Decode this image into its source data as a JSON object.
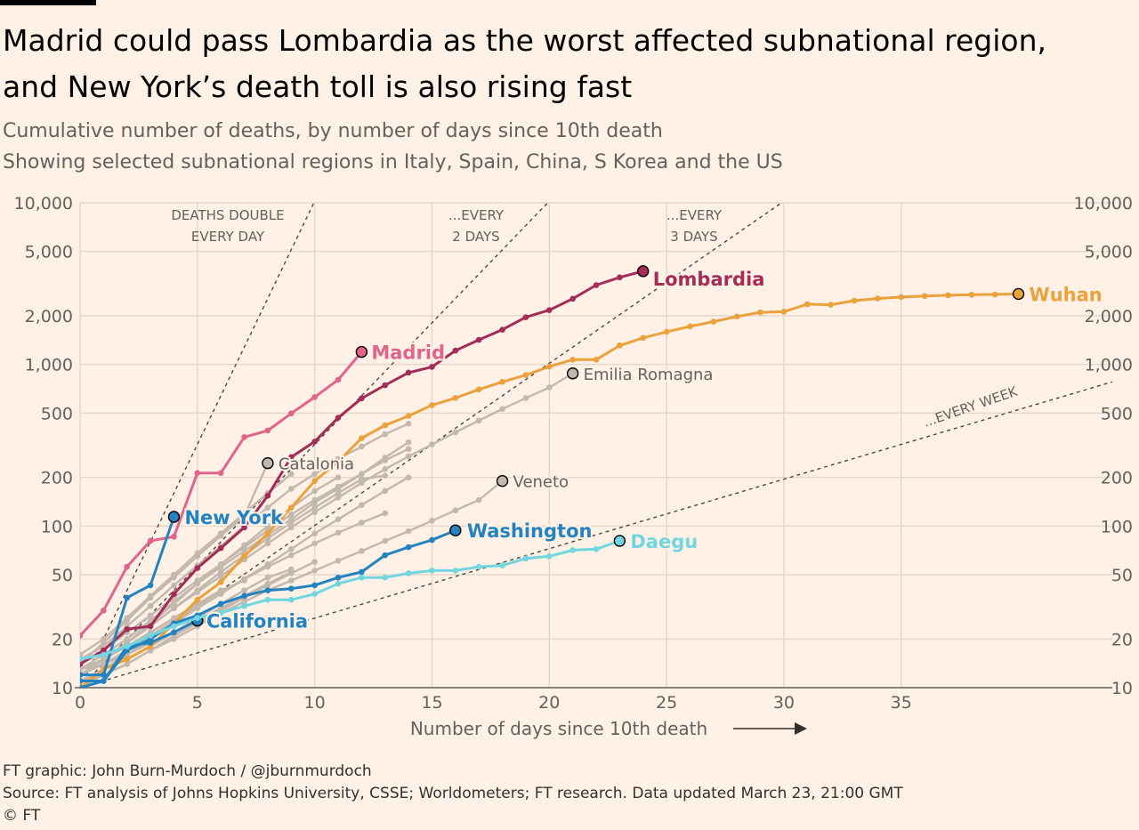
{
  "title_line1": "Madrid could pass Lombardia as the worst affected subnational region,",
  "title_line2": "and New York’s death toll is also rising fast",
  "subtitle_line1": "Cumulative number of deaths, by number of days since 10th death",
  "subtitle_line2": "Showing selected subnational regions in Italy, Spain, China, S Korea and the US",
  "footer": {
    "credit": "FT graphic: John Burn-Murdoch / @jburnmurdoch",
    "source": "Source: FT analysis of Johns Hopkins University, CSSE; Worldometers; FT research. Data updated March 23, 21:00 GMT",
    "copyright": "© FT"
  },
  "colors": {
    "madrid": "#e0648c",
    "lombardia": "#a32c58",
    "wuhan": "#eba13c",
    "new_york": "#2382c0",
    "california": "#2382c0",
    "washington": "#2382c0",
    "daegu": "#72d6e0",
    "gray": "#c2b8ae",
    "grid": "#e4d8cc",
    "reference": "#4d4845"
  },
  "chart_data": {
    "type": "line",
    "xlabel": "Number of days since 10th death",
    "xlim": [
      0,
      44
    ],
    "ylim": [
      10,
      10000
    ],
    "yscale": "log",
    "x_ticks": [
      0,
      5,
      10,
      15,
      20,
      25,
      30,
      35
    ],
    "y_ticks": [
      10,
      20,
      50,
      100,
      200,
      500,
      1000,
      2000,
      5000,
      10000
    ],
    "y_tick_labels": [
      "10",
      "20",
      "50",
      "100",
      "200",
      "500",
      "1,000",
      "2,000",
      "5,000",
      "10,000"
    ],
    "grid": true,
    "reference_lines": [
      {
        "label_lines": [
          "DEATHS DOUBLE",
          "EVERY DAY"
        ],
        "doubling_days": 1
      },
      {
        "label_lines": [
          "...EVERY",
          "2 DAYS"
        ],
        "doubling_days": 2
      },
      {
        "label_lines": [
          "...EVERY",
          "3 DAYS"
        ],
        "doubling_days": 3
      },
      {
        "label_lines": [
          "...EVERY WEEK"
        ],
        "doubling_days": 7
      }
    ],
    "series": [
      {
        "name": "",
        "style": "gray",
        "values": [
          13,
          16,
          20,
          26,
          34,
          44,
          56,
          70,
          88,
          110,
          140,
          170,
          210,
          265,
          330
        ]
      },
      {
        "name": "",
        "style": "gray",
        "values": [
          12,
          15,
          19,
          24,
          31,
          40,
          52,
          66,
          84,
          105,
          130,
          160,
          195,
          205
        ]
      },
      {
        "name": "",
        "style": "gray",
        "values": [
          11,
          13,
          16,
          20,
          25,
          31,
          38,
          47,
          58,
          72,
          90,
          110,
          135,
          165,
          200
        ]
      },
      {
        "name": "",
        "style": "gray",
        "values": [
          14,
          17,
          22,
          28,
          36,
          46,
          58,
          74,
          94,
          118,
          145,
          175,
          210,
          255,
          300
        ]
      },
      {
        "name": "",
        "style": "gray",
        "values": [
          12,
          14,
          17,
          21,
          26,
          32,
          39,
          47,
          56,
          66,
          78,
          91,
          105,
          120
        ]
      },
      {
        "name": "",
        "style": "gray",
        "values": [
          13,
          14,
          16,
          19,
          22,
          26,
          31,
          37,
          44,
          52
        ]
      },
      {
        "name": "",
        "style": "gray",
        "values": [
          10,
          12,
          14,
          17,
          21,
          25,
          30,
          36,
          43,
          51,
          60
        ]
      },
      {
        "name": "",
        "style": "gray",
        "values": [
          11,
          13,
          15,
          18,
          22,
          27,
          33,
          40,
          48,
          54
        ]
      },
      {
        "name": "",
        "style": "gray",
        "values": [
          12,
          15,
          19,
          25,
          33,
          44,
          58,
          76,
          100,
          130,
          165,
          200
        ]
      },
      {
        "name": "",
        "style": "gray",
        "values": [
          13,
          15,
          18,
          22,
          27,
          33,
          40,
          46
        ]
      },
      {
        "name": "",
        "style": "gray",
        "values": [
          16,
          20,
          27,
          37,
          50,
          68,
          90,
          120,
          160,
          210
        ]
      },
      {
        "name": "",
        "style": "gray",
        "values": [
          15,
          18,
          24,
          32,
          43,
          57,
          75,
          100,
          130,
          170,
          210,
          260,
          310,
          370,
          430
        ]
      },
      {
        "name": "Catalonia",
        "style": "gray",
        "labeled": true,
        "values": [
          14,
          19,
          26,
          36,
          48,
          65,
          87,
          115,
          245
        ]
      },
      {
        "name": "Veneto",
        "style": "gray",
        "labeled": true,
        "values": [
          11,
          12,
          14,
          17,
          20,
          24,
          29,
          34,
          40,
          46,
          53,
          61,
          70,
          81,
          93,
          108,
          125,
          145,
          190
        ]
      },
      {
        "name": "Emilia Romagna",
        "style": "gray",
        "labeled": true,
        "values": [
          12,
          15,
          19,
          24,
          31,
          39,
          49,
          62,
          78,
          98,
          122,
          150,
          185,
          225,
          270,
          320,
          380,
          450,
          530,
          620,
          720,
          880
        ]
      },
      {
        "name": "Lombardia",
        "style": "lombardia",
        "values": [
          14,
          17,
          23,
          24,
          38,
          55,
          73,
          98,
          154,
          267,
          333,
          468,
          617,
          744,
          890,
          966,
          1218,
          1420,
          1640,
          1959,
          2168,
          2549,
          3095,
          3456,
          3776
        ]
      },
      {
        "name": "Wuhan",
        "style": "wuhan",
        "values": [
          10,
          13,
          15,
          18,
          25,
          35,
          45,
          65,
          90,
          130,
          190,
          250,
          350,
          420,
          480,
          560,
          620,
          700,
          780,
          860,
          970,
          1070,
          1070,
          1310,
          1460,
          1590,
          1720,
          1840,
          1980,
          2100,
          2120,
          2360,
          2340,
          2480,
          2560,
          2610,
          2650,
          2680,
          2700,
          2710,
          2730
        ]
      },
      {
        "name": "Madrid",
        "style": "madrid",
        "values": [
          21,
          30,
          56,
          81,
          86,
          213,
          213,
          355,
          390,
          498,
          628,
          804,
          1195
        ]
      },
      {
        "name": "New York",
        "style": "new_york",
        "values": [
          12,
          12,
          36,
          43,
          114
        ]
      },
      {
        "name": "California",
        "style": "california",
        "values": [
          11,
          11,
          18,
          19,
          22,
          26
        ]
      },
      {
        "name": "Washington",
        "style": "washington",
        "values": [
          10,
          11,
          17,
          20,
          25,
          28,
          33,
          37,
          40,
          41,
          43,
          48,
          52,
          66,
          74,
          82,
          94
        ]
      },
      {
        "name": "Daegu",
        "style": "daegu",
        "values": [
          15,
          16,
          18,
          21,
          24,
          27,
          29,
          32,
          35,
          35,
          38,
          44,
          48,
          48,
          51,
          53,
          53,
          56,
          57,
          63,
          65,
          71,
          72,
          81
        ]
      }
    ]
  }
}
